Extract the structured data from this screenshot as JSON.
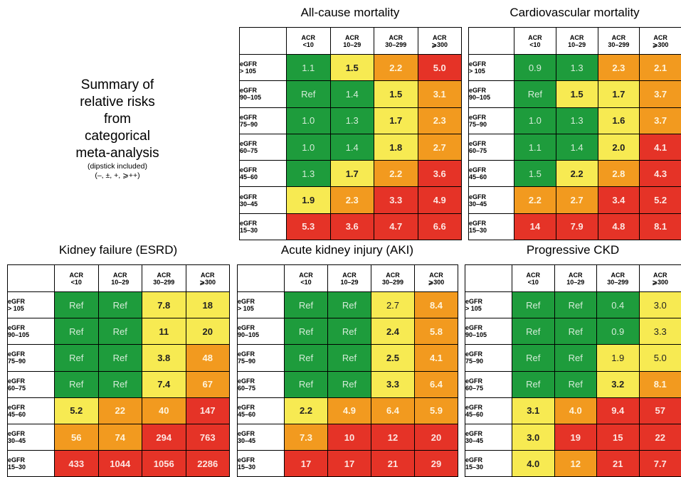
{
  "summary": {
    "lines": [
      "Summary of",
      "relative risks",
      "from",
      "categorical",
      "meta-analysis"
    ],
    "note1": "(dipstick included)",
    "note2": "(–, ±, +, ⩾++)"
  },
  "col_headers": [
    [
      "ACR",
      "<10"
    ],
    [
      "ACR",
      "10–29"
    ],
    [
      "ACR",
      "30–299"
    ],
    [
      "ACR",
      "⩾300"
    ]
  ],
  "row_headers": [
    [
      "eGFR",
      "> 105"
    ],
    [
      "eGFR",
      "90–105"
    ],
    [
      "eGFR",
      "75–90"
    ],
    [
      "eGFR",
      "60–75"
    ],
    [
      "eGFR",
      "45–60"
    ],
    [
      "eGFR",
      "30–45"
    ],
    [
      "eGFR",
      "15–30"
    ]
  ],
  "colors": {
    "green": "#1e9c3c",
    "yellow": "#f7ea52",
    "orange": "#f29a1f",
    "red": "#e53327"
  },
  "panels": [
    {
      "id": "all-cause-mortality",
      "title": "All-cause mortality",
      "values": [
        [
          "1.1",
          "1.5",
          "2.2",
          "5.0"
        ],
        [
          "Ref",
          "1.4",
          "1.5",
          "3.1"
        ],
        [
          "1.0",
          "1.3",
          "1.7",
          "2.3"
        ],
        [
          "1.0",
          "1.4",
          "1.8",
          "2.7"
        ],
        [
          "1.3",
          "1.7",
          "2.2",
          "3.6"
        ],
        [
          "1.9",
          "2.3",
          "3.3",
          "4.9"
        ],
        [
          "5.3",
          "3.6",
          "4.7",
          "6.6"
        ]
      ],
      "colors": [
        [
          "g",
          "y",
          "o",
          "r"
        ],
        [
          "g",
          "g",
          "y",
          "o"
        ],
        [
          "g",
          "g",
          "y",
          "o"
        ],
        [
          "g",
          "g",
          "y",
          "o"
        ],
        [
          "g",
          "y",
          "o",
          "r"
        ],
        [
          "y",
          "o",
          "r",
          "r"
        ],
        [
          "r",
          "r",
          "r",
          "r"
        ]
      ]
    },
    {
      "id": "cardiovascular-mortality",
      "title": "Cardiovascular mortality",
      "values": [
        [
          "0.9",
          "1.3",
          "2.3",
          "2.1"
        ],
        [
          "Ref",
          "1.5",
          "1.7",
          "3.7"
        ],
        [
          "1.0",
          "1.3",
          "1.6",
          "3.7"
        ],
        [
          "1.1",
          "1.4",
          "2.0",
          "4.1"
        ],
        [
          "1.5",
          "2.2",
          "2.8",
          "4.3"
        ],
        [
          "2.2",
          "2.7",
          "3.4",
          "5.2"
        ],
        [
          "14",
          "7.9",
          "4.8",
          "8.1"
        ]
      ],
      "colors": [
        [
          "g",
          "g",
          "o",
          "o"
        ],
        [
          "g",
          "y",
          "y",
          "o"
        ],
        [
          "g",
          "g",
          "y",
          "o"
        ],
        [
          "g",
          "g",
          "y",
          "r"
        ],
        [
          "g",
          "y",
          "o",
          "r"
        ],
        [
          "o",
          "o",
          "r",
          "r"
        ],
        [
          "r",
          "r",
          "r",
          "r"
        ]
      ]
    },
    {
      "id": "kidney-failure",
      "title": "Kidney failure (ESRD)",
      "values": [
        [
          "Ref",
          "Ref",
          "7.8",
          "18"
        ],
        [
          "Ref",
          "Ref",
          "11",
          "20"
        ],
        [
          "Ref",
          "Ref",
          "3.8",
          "48"
        ],
        [
          "Ref",
          "Ref",
          "7.4",
          "67"
        ],
        [
          "5.2",
          "22",
          "40",
          "147"
        ],
        [
          "56",
          "74",
          "294",
          "763"
        ],
        [
          "433",
          "1044",
          "1056",
          "2286"
        ]
      ],
      "colors": [
        [
          "g",
          "g",
          "y",
          "y"
        ],
        [
          "g",
          "g",
          "y",
          "y"
        ],
        [
          "g",
          "g",
          "y",
          "o"
        ],
        [
          "g",
          "g",
          "y",
          "o"
        ],
        [
          "y",
          "o",
          "o",
          "r"
        ],
        [
          "o",
          "o",
          "r",
          "r"
        ],
        [
          "r",
          "r",
          "r",
          "r"
        ]
      ]
    },
    {
      "id": "acute-kidney-injury",
      "title": "Acute kidney injury (AKI)",
      "values": [
        [
          "Ref",
          "Ref",
          "2.7",
          "8.4"
        ],
        [
          "Ref",
          "Ref",
          "2.4",
          "5.8"
        ],
        [
          "Ref",
          "Ref",
          "2.5",
          "4.1"
        ],
        [
          "Ref",
          "Ref",
          "3.3",
          "6.4"
        ],
        [
          "2.2",
          "4.9",
          "6.4",
          "5.9"
        ],
        [
          "7.3",
          "10",
          "12",
          "20"
        ],
        [
          "17",
          "17",
          "21",
          "29"
        ]
      ],
      "colors": [
        [
          "g",
          "g",
          "yl",
          "o"
        ],
        [
          "g",
          "g",
          "y",
          "o"
        ],
        [
          "g",
          "g",
          "y",
          "o"
        ],
        [
          "g",
          "g",
          "y",
          "o"
        ],
        [
          "y",
          "o",
          "o",
          "o"
        ],
        [
          "o",
          "r",
          "r",
          "r"
        ],
        [
          "r",
          "r",
          "r",
          "r"
        ]
      ]
    },
    {
      "id": "progressive-ckd",
      "title": "Progressive CKD",
      "values": [
        [
          "Ref",
          "Ref",
          "0.4",
          "3.0"
        ],
        [
          "Ref",
          "Ref",
          "0.9",
          "3.3"
        ],
        [
          "Ref",
          "Ref",
          "1.9",
          "5.0"
        ],
        [
          "Ref",
          "Ref",
          "3.2",
          "8.1"
        ],
        [
          "3.1",
          "4.0",
          "9.4",
          "57"
        ],
        [
          "3.0",
          "19",
          "15",
          "22"
        ],
        [
          "4.0",
          "12",
          "21",
          "7.7"
        ]
      ],
      "colors": [
        [
          "g",
          "g",
          "g",
          "yl"
        ],
        [
          "g",
          "g",
          "g",
          "yl"
        ],
        [
          "g",
          "g",
          "yl",
          "yl"
        ],
        [
          "g",
          "g",
          "y",
          "o"
        ],
        [
          "y",
          "o",
          "r",
          "r"
        ],
        [
          "y",
          "r",
          "r",
          "r"
        ],
        [
          "y",
          "o",
          "r",
          "r"
        ]
      ]
    }
  ]
}
